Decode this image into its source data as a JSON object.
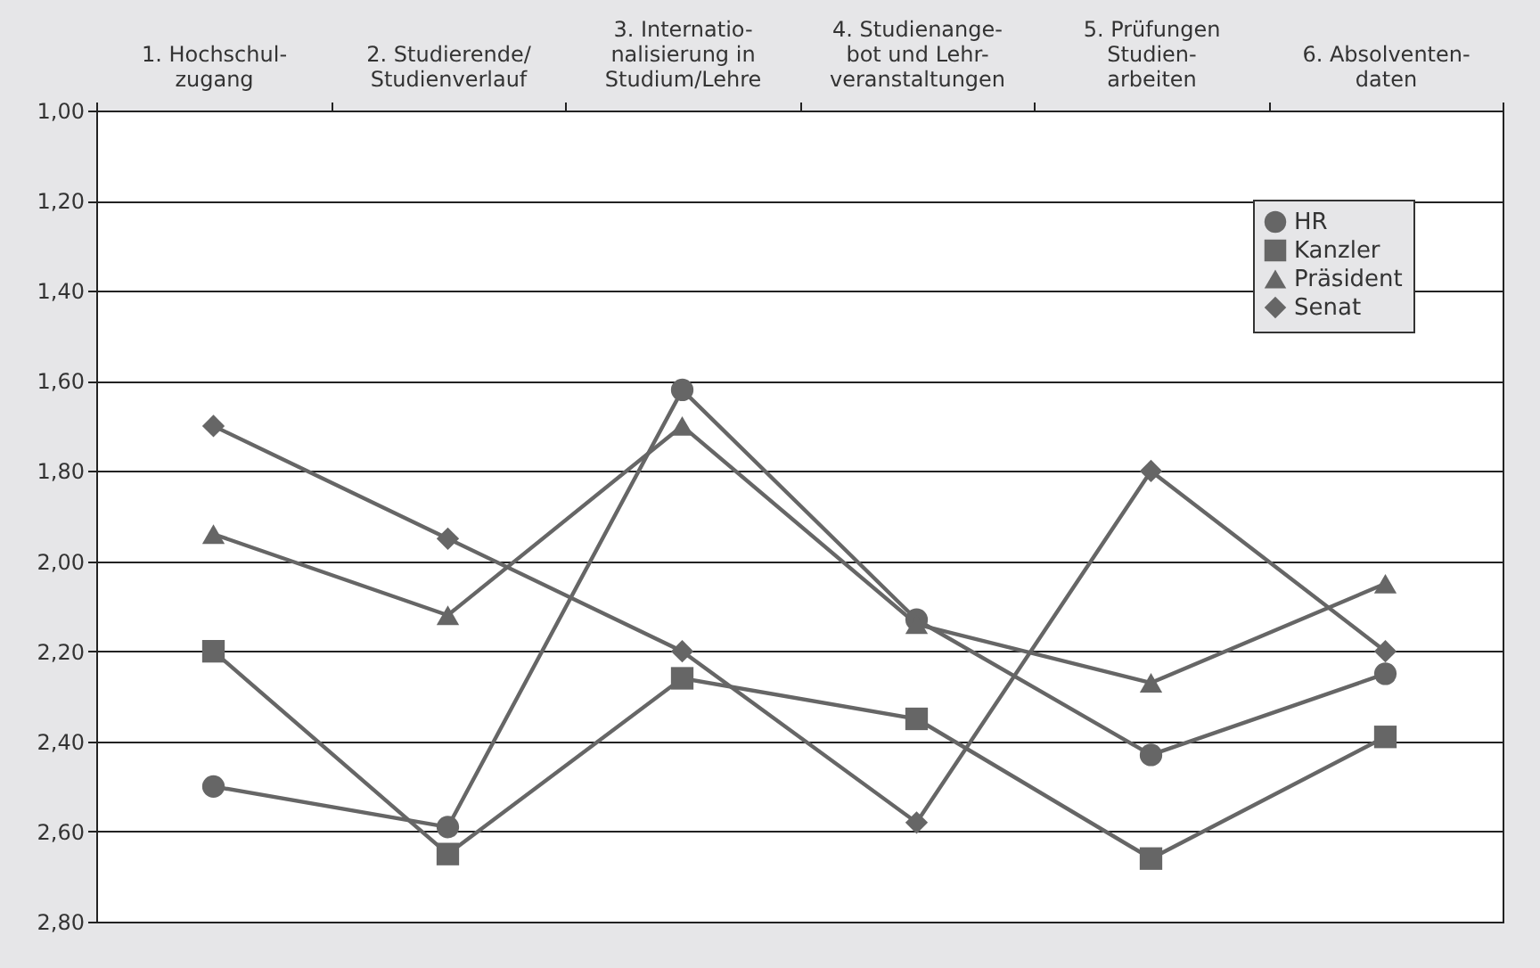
{
  "chart_data": {
    "type": "line",
    "categories": [
      "1. Hochschul-\nzugang",
      "2. Studierende/\nStudienverlauf",
      "3. Internatio-\nnalisierung in\nStudium/Lehre",
      "4. Studienange-\nbot und Lehr-\nveranstaltungen",
      "5. Prüfungen\nStudien-\narbeiten",
      "6. Absolventen-\ndaten"
    ],
    "series": [
      {
        "name": "HR",
        "color": "#666666",
        "marker": "circle",
        "values": [
          2.5,
          2.59,
          1.62,
          2.13,
          2.43,
          2.25
        ]
      },
      {
        "name": "Kanzler",
        "color": "#666666",
        "marker": "square",
        "values": [
          2.2,
          2.65,
          2.26,
          2.35,
          2.66,
          2.39
        ]
      },
      {
        "name": "Präsident",
        "color": "#666666",
        "marker": "triangle",
        "values": [
          1.94,
          2.12,
          1.7,
          2.14,
          2.27,
          2.05
        ]
      },
      {
        "name": "Senat",
        "color": "#666666",
        "marker": "diamond",
        "values": [
          1.7,
          1.95,
          2.2,
          2.58,
          1.8,
          2.2
        ]
      }
    ],
    "ylim": [
      2.8,
      1.0
    ],
    "yticks": [
      {
        "value": 1.0,
        "label": "1,00"
      },
      {
        "value": 1.2,
        "label": "1,20"
      },
      {
        "value": 1.4,
        "label": "1,40"
      },
      {
        "value": 1.6,
        "label": "1,60"
      },
      {
        "value": 1.8,
        "label": "1,80"
      },
      {
        "value": 2.0,
        "label": "2,00"
      },
      {
        "value": 2.2,
        "label": "2,20"
      },
      {
        "value": 2.4,
        "label": "2,40"
      },
      {
        "value": 2.6,
        "label": "2,60"
      },
      {
        "value": 2.8,
        "label": "2,80"
      }
    ],
    "grid": "y",
    "legend": "top right",
    "line_style": "solid"
  }
}
